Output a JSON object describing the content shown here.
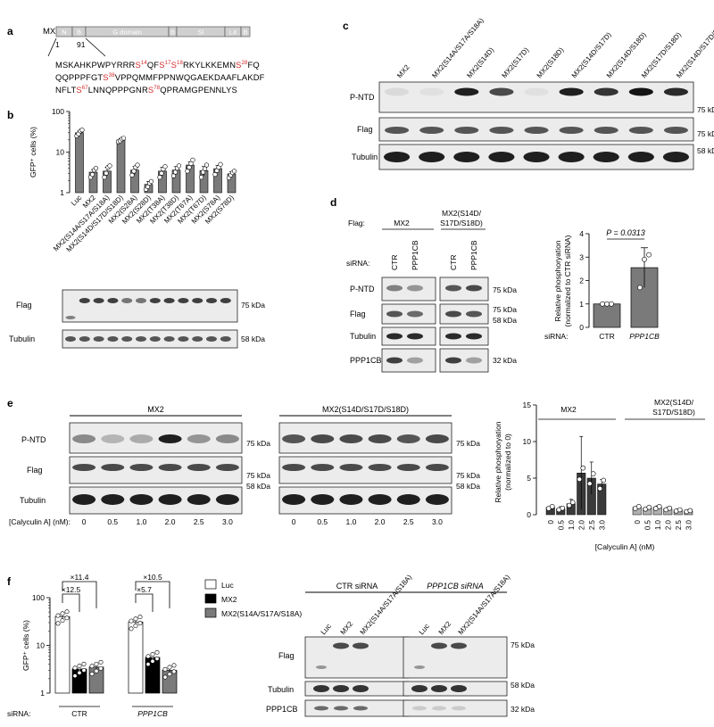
{
  "panel_labels": {
    "a": "a",
    "b": "b",
    "c": "c",
    "d": "d",
    "e": "e",
    "f": "f"
  },
  "panel_a": {
    "protein": "MX2",
    "domains": [
      "N",
      "B",
      "G domain",
      "B",
      "SI",
      "L4",
      "B"
    ],
    "positions": [
      "1",
      "91"
    ],
    "sequence_lines": [
      [
        [
          "MSKAHKPWPYRRR",
          0
        ],
        [
          "S",
          "14",
          1
        ],
        [
          "QF",
          0
        ],
        [
          "S",
          "17",
          1
        ],
        [
          "S",
          "18",
          1
        ],
        [
          "RKYLKKEMN",
          0
        ],
        [
          "S",
          "28",
          1
        ],
        [
          "FQ",
          0
        ]
      ],
      [
        [
          "QQPPPFGT",
          0
        ],
        [
          "S",
          "38",
          1
        ],
        [
          "VPPQMMFPPNWQGAEKDAAFLAKDF",
          0
        ]
      ],
      [
        [
          "NFLT",
          0
        ],
        [
          "S",
          "67",
          1
        ],
        [
          "LNNQPPPGNR",
          0
        ],
        [
          "S",
          "78",
          1
        ],
        [
          "QPRAMGPENNLYS",
          0
        ]
      ]
    ]
  },
  "panel_b": {
    "ylabel": "GFP⁺ cells (%)",
    "yticks": [
      "1",
      "10",
      "100"
    ],
    "chart_data": {
      "type": "bar",
      "yscale": "log",
      "ylim": [
        1,
        100
      ],
      "ylabel": "GFP⁺ cells (%)",
      "categories": [
        "Luc",
        "MX2",
        "MX2(S14A/S17A/S18A)",
        "MX2(S14D/S17D/S18D)",
        "MX2(S28A)",
        "MX2(S28D)",
        "MX2(T38A)",
        "MX2(T38D)",
        "MX2(T67A)",
        "MX2(T67D)",
        "MX2(S78A)",
        "MX2(S78D)"
      ],
      "values": [
        30,
        3.2,
        3.4,
        20,
        3.6,
        1.6,
        3.4,
        3.6,
        4.8,
        3.5,
        3.9,
        2.9
      ],
      "errors": [
        3,
        0.5,
        0.8,
        1.5,
        0.8,
        0.3,
        0.8,
        0.8,
        1,
        0.9,
        0.8,
        0.4
      ],
      "points": [
        [
          25,
          28,
          33,
          35
        ],
        [
          2.4,
          2.8,
          3.6,
          4.0
        ],
        [
          2.4,
          3.0,
          4.2,
          4.6
        ],
        [
          18,
          19,
          21,
          22
        ],
        [
          2.7,
          3.4,
          4.2,
          4.8
        ],
        [
          1.2,
          1.4,
          1.7,
          1.9
        ],
        [
          2.4,
          3.0,
          3.8,
          4.4
        ],
        [
          2.6,
          3.2,
          4.0,
          4.6
        ],
        [
          3.4,
          4.2,
          5.2,
          6.4
        ],
        [
          2.4,
          3.2,
          3.9,
          4.8
        ],
        [
          2.8,
          3.5,
          4.2,
          5.0
        ],
        [
          2.3,
          2.7,
          3.1,
          3.4
        ]
      ]
    },
    "blot_labels": [
      "Flag",
      "Tubulin"
    ],
    "mw": [
      "75 kDa",
      "58 kDa"
    ]
  },
  "panel_c": {
    "lanes": [
      "MX2",
      "MX2(S14A/S17A/S18A)",
      "MX2(S14D)",
      "MX2(S17D)",
      "MX2(S18D)",
      "MX2(S14D/S17D)",
      "MX2(S14D/S18D)",
      "MX2(S17D/S18D)",
      "MX2(S14D/S17D/S18D)"
    ],
    "blot_labels": [
      "P-NTD",
      "Flag",
      "Tubulin"
    ],
    "mw": [
      "75 kDa",
      "75 kDa",
      "58 kDa"
    ],
    "pntd_intensity": [
      0.08,
      0.05,
      0.95,
      0.75,
      0.05,
      0.95,
      0.85,
      1.0,
      0.9
    ]
  },
  "panel_d": {
    "flag_label": "Flag:",
    "groups": [
      "MX2",
      "MX2(S14D/",
      "S17D/S18D)"
    ],
    "sirna_label": "siRNA:",
    "lanes": [
      "CTR",
      "PPP1CB",
      "CTR",
      "PPP1CB"
    ],
    "blot_labels": [
      "P-NTD",
      "Flag",
      "Tubulin",
      "PPP1CB"
    ],
    "mw": [
      "75 kDa",
      "75 kDa",
      "58 kDa",
      "32 kDa"
    ],
    "chart_data": {
      "type": "bar",
      "ylabel": "Relative phosphoryation (normalized to CTR siRNA)",
      "categories": [
        "CTR",
        "PPP1CB"
      ],
      "values": [
        1.0,
        2.55
      ],
      "errors": [
        0,
        0.85
      ],
      "points": [
        [
          1,
          1,
          1
        ],
        [
          1.7,
          2.9,
          3.1
        ]
      ],
      "ylim": [
        0,
        4
      ],
      "yticks": [
        "0",
        "1",
        "2",
        "3",
        "4"
      ],
      "pvalue": "P = 0.0313"
    },
    "ylabel_lines": [
      "Relative phosphoryation",
      "(normalized to CTR siRNA)"
    ]
  },
  "panel_e": {
    "groups": [
      "MX2",
      "MX2(S14D/S17D/S18D)"
    ],
    "blot_labels": [
      "P-NTD",
      "Flag",
      "Tubulin"
    ],
    "mw": [
      "75 kDa",
      "75 kDa",
      "58 kDa"
    ],
    "x_label": "[Calyculin A] (nM):",
    "concentrations": [
      "0",
      "0.5",
      "1.0",
      "2.0",
      "2.5",
      "3.0"
    ],
    "chart_data": {
      "type": "bar",
      "ylabel": "Relative phosphoryation (normalized to 0)",
      "xlabel": "[Calyculin A] (nM)",
      "groups": [
        "MX2",
        "MX2(S14D/S17D/S18D)"
      ],
      "categories": [
        "0",
        "0.5",
        "1.0",
        "2.0",
        "2.5",
        "3.0"
      ],
      "series": [
        {
          "name": "MX2",
          "values": [
            1.0,
            0.8,
            1.5,
            5.7,
            5.0,
            4.2
          ],
          "errors": [
            0,
            0.3,
            0.6,
            5.0,
            2.2,
            0.6
          ]
        },
        {
          "name": "MX2(S14D/S17D/S18D)",
          "values": [
            1.0,
            0.9,
            1.0,
            0.8,
            0.6,
            0.5
          ],
          "errors": [
            0,
            0.1,
            0.2,
            0.2,
            0.2,
            0.2
          ]
        }
      ],
      "ylim": [
        0,
        15
      ],
      "yticks": [
        "0",
        "5",
        "10",
        "15"
      ]
    },
    "ylabel_lines": [
      "Relative phosphoryation",
      "(normalized to 0)"
    ]
  },
  "panel_f": {
    "ylabel": "GFP⁺ cells (%)",
    "yticks": [
      "1",
      "10",
      "100"
    ],
    "sirna_label": "siRNA:",
    "sirna_groups": [
      "CTR",
      "PPP1CB"
    ],
    "folds": [
      "×11.4",
      "×12.5",
      "×10.5",
      "×5.7"
    ],
    "legend": [
      "Luc",
      "MX2",
      "MX2(S14A/S17A/S18A)"
    ],
    "chart_data": {
      "type": "bar",
      "yscale": "log",
      "ylim": [
        1,
        100
      ],
      "categories": [
        "CTR",
        "PPP1CB"
      ],
      "series": [
        {
          "name": "Luc",
          "values": [
            40,
            31
          ],
          "errors": [
            6,
            5
          ],
          "color": "#ffffff"
        },
        {
          "name": "MX2",
          "values": [
            3.2,
            5.6
          ],
          "errors": [
            0.6,
            1.3
          ],
          "color": "#000000"
        },
        {
          "name": "MX2(S14A/S17A/S18A)",
          "values": [
            3.5,
            3.0
          ],
          "errors": [
            0.7,
            0.6
          ],
          "color": "#7a7a7a"
        }
      ]
    },
    "blot_groups": [
      "CTR siRNA",
      "PPP1CB siRNA"
    ],
    "lanes": [
      "Luc",
      "MX2",
      "MX2(S14A/S17A/S18A)"
    ],
    "blot_labels": [
      "Flag",
      "Tubulin",
      "PPP1CB"
    ],
    "mw": [
      "75 kDa",
      "58 kDa",
      "32 kDa"
    ]
  }
}
